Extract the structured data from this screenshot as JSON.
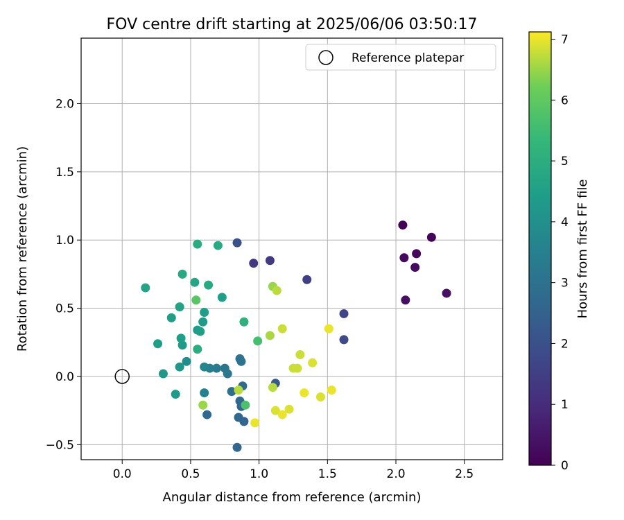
{
  "chart_data": {
    "type": "scatter",
    "title": "FOV centre drift starting at 2025/06/06 03:50:17",
    "xlabel": "Angular distance from reference (arcmin)",
    "ylabel": "Rotation from reference (arcmin)",
    "xlim": [
      -0.3,
      2.78
    ],
    "ylim": [
      -0.61,
      2.48
    ],
    "xticks": [
      "0.0",
      "0.5",
      "1.0",
      "1.5",
      "2.0",
      "2.5"
    ],
    "yticks": [
      "−0.5",
      "0.0",
      "0.5",
      "1.0",
      "1.5",
      "2.0"
    ],
    "xtick_values": [
      0,
      0.5,
      1.0,
      1.5,
      2.0,
      2.5
    ],
    "ytick_values": [
      -0.5,
      0,
      0.5,
      1.0,
      1.5,
      2.0
    ],
    "grid": true,
    "legend": {
      "position": "top-right",
      "entries": [
        "Reference platepar"
      ]
    },
    "reference_point": {
      "x": 0.0,
      "y": 0.0,
      "label": "Reference platepar"
    },
    "colorbar": {
      "label": "Hours from first FF file",
      "colormap": "viridis",
      "range": [
        0,
        7.12
      ],
      "ticks": [
        "0",
        "1",
        "2",
        "3",
        "4",
        "5",
        "6",
        "7"
      ],
      "tick_values": [
        0,
        1,
        2,
        3,
        4,
        5,
        6,
        7
      ]
    },
    "points": [
      {
        "x": 2.05,
        "y": 1.11,
        "h": 0.05
      },
      {
        "x": 2.26,
        "y": 1.02,
        "h": 0.1
      },
      {
        "x": 2.15,
        "y": 0.9,
        "h": 0.15
      },
      {
        "x": 2.06,
        "y": 0.87,
        "h": 0.2
      },
      {
        "x": 2.14,
        "y": 0.8,
        "h": 0.25
      },
      {
        "x": 2.37,
        "y": 0.61,
        "h": 0.3
      },
      {
        "x": 2.07,
        "y": 0.56,
        "h": 0.35
      },
      {
        "x": 0.96,
        "y": 0.83,
        "h": 1.3
      },
      {
        "x": 1.08,
        "y": 0.85,
        "h": 1.4
      },
      {
        "x": 1.35,
        "y": 0.71,
        "h": 1.5
      },
      {
        "x": 1.62,
        "y": 0.46,
        "h": 1.7
      },
      {
        "x": 1.62,
        "y": 0.27,
        "h": 1.8
      },
      {
        "x": 0.84,
        "y": 0.98,
        "h": 2.0
      },
      {
        "x": 1.12,
        "y": -0.05,
        "h": 2.3
      },
      {
        "x": 0.84,
        "y": -0.52,
        "h": 2.6
      },
      {
        "x": 0.62,
        "y": -0.28,
        "h": 2.7
      },
      {
        "x": 0.85,
        "y": -0.3,
        "h": 2.7
      },
      {
        "x": 0.89,
        "y": -0.33,
        "h": 2.6
      },
      {
        "x": 0.86,
        "y": -0.18,
        "h": 2.7
      },
      {
        "x": 0.87,
        "y": -0.22,
        "h": 2.6
      },
      {
        "x": 0.88,
        "y": -0.07,
        "h": 2.8
      },
      {
        "x": 0.8,
        "y": -0.11,
        "h": 2.9
      },
      {
        "x": 0.86,
        "y": 0.13,
        "h": 3.0
      },
      {
        "x": 0.87,
        "y": 0.11,
        "h": 3.0
      },
      {
        "x": 0.75,
        "y": 0.06,
        "h": 3.1
      },
      {
        "x": 0.77,
        "y": 0.02,
        "h": 3.2
      },
      {
        "x": 0.69,
        "y": 0.06,
        "h": 3.3
      },
      {
        "x": 0.64,
        "y": 0.06,
        "h": 3.4
      },
      {
        "x": 0.6,
        "y": -0.12,
        "h": 3.5
      },
      {
        "x": 0.6,
        "y": 0.07,
        "h": 3.7
      },
      {
        "x": 0.47,
        "y": 0.11,
        "h": 3.9
      },
      {
        "x": 0.42,
        "y": 0.07,
        "h": 4.2
      },
      {
        "x": 0.3,
        "y": 0.02,
        "h": 4.3
      },
      {
        "x": 0.39,
        "y": -0.13,
        "h": 4.4
      },
      {
        "x": 0.26,
        "y": 0.24,
        "h": 4.5
      },
      {
        "x": 0.44,
        "y": 0.23,
        "h": 4.4
      },
      {
        "x": 0.43,
        "y": 0.28,
        "h": 4.5
      },
      {
        "x": 0.55,
        "y": 0.34,
        "h": 4.4
      },
      {
        "x": 0.57,
        "y": 0.33,
        "h": 4.5
      },
      {
        "x": 0.59,
        "y": 0.4,
        "h": 4.4
      },
      {
        "x": 0.6,
        "y": 0.47,
        "h": 4.5
      },
      {
        "x": 0.36,
        "y": 0.43,
        "h": 4.5
      },
      {
        "x": 0.42,
        "y": 0.51,
        "h": 4.6
      },
      {
        "x": 0.73,
        "y": 0.58,
        "h": 4.5
      },
      {
        "x": 0.17,
        "y": 0.65,
        "h": 4.7
      },
      {
        "x": 0.53,
        "y": 0.69,
        "h": 4.7
      },
      {
        "x": 0.63,
        "y": 0.67,
        "h": 4.8
      },
      {
        "x": 0.44,
        "y": 0.75,
        "h": 4.8
      },
      {
        "x": 0.55,
        "y": 0.97,
        "h": 4.9
      },
      {
        "x": 0.7,
        "y": 0.96,
        "h": 4.8
      },
      {
        "x": 0.55,
        "y": 0.2,
        "h": 5.0
      },
      {
        "x": 0.89,
        "y": 0.4,
        "h": 5.1
      },
      {
        "x": 0.99,
        "y": 0.26,
        "h": 5.6
      },
      {
        "x": 0.9,
        "y": -0.21,
        "h": 5.7
      },
      {
        "x": 0.54,
        "y": 0.56,
        "h": 5.9
      },
      {
        "x": 0.59,
        "y": -0.21,
        "h": 6.5
      },
      {
        "x": 0.85,
        "y": -0.1,
        "h": 6.7
      },
      {
        "x": 1.1,
        "y": 0.66,
        "h": 6.5
      },
      {
        "x": 1.13,
        "y": 0.63,
        "h": 6.7
      },
      {
        "x": 1.08,
        "y": 0.3,
        "h": 6.6
      },
      {
        "x": 1.1,
        "y": -0.08,
        "h": 6.7
      },
      {
        "x": 1.17,
        "y": 0.35,
        "h": 6.8
      },
      {
        "x": 1.3,
        "y": 0.16,
        "h": 6.8
      },
      {
        "x": 1.25,
        "y": 0.06,
        "h": 6.8
      },
      {
        "x": 1.28,
        "y": 0.06,
        "h": 6.8
      },
      {
        "x": 1.39,
        "y": 0.1,
        "h": 6.9
      },
      {
        "x": 1.51,
        "y": 0.35,
        "h": 7.0
      },
      {
        "x": 1.53,
        "y": -0.1,
        "h": 7.0
      },
      {
        "x": 1.45,
        "y": -0.15,
        "h": 6.9
      },
      {
        "x": 1.33,
        "y": -0.12,
        "h": 7.0
      },
      {
        "x": 1.22,
        "y": -0.24,
        "h": 6.9
      },
      {
        "x": 1.12,
        "y": -0.25,
        "h": 6.9
      },
      {
        "x": 1.17,
        "y": -0.28,
        "h": 7.0
      },
      {
        "x": 0.97,
        "y": -0.34,
        "h": 7.0
      }
    ]
  }
}
